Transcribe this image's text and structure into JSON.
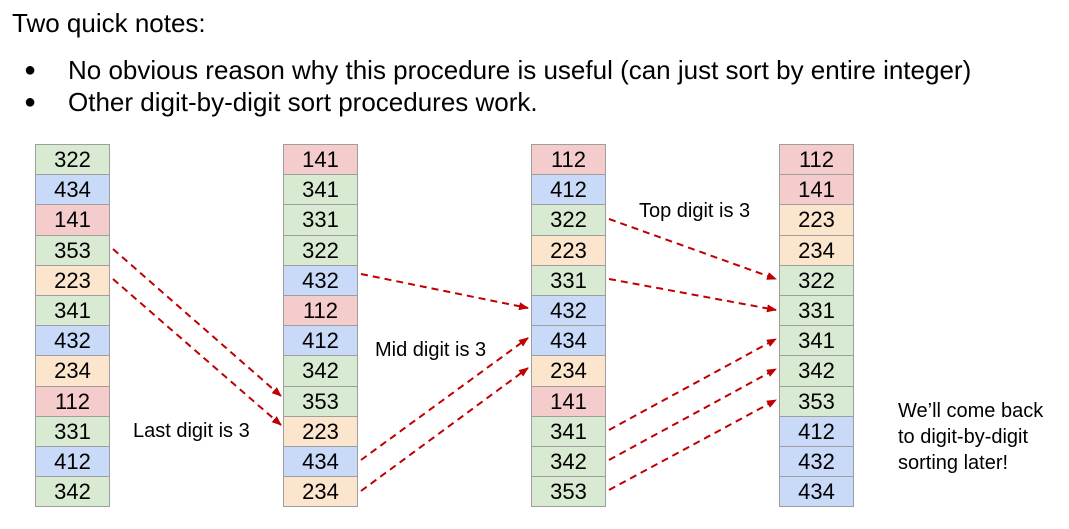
{
  "title": "Two quick notes:",
  "bullets": [
    "No obvious reason why this procedure is useful (can just sort by entire integer)",
    "Other digit-by-digit sort procedures work."
  ],
  "columns": [
    {
      "cells": [
        {
          "v": "322",
          "c": 1
        },
        {
          "v": "434",
          "c": 2
        },
        {
          "v": "141",
          "c": 3
        },
        {
          "v": "353",
          "c": 1
        },
        {
          "v": "223",
          "c": 4
        },
        {
          "v": "341",
          "c": 1
        },
        {
          "v": "432",
          "c": 2
        },
        {
          "v": "234",
          "c": 4
        },
        {
          "v": "112",
          "c": 3
        },
        {
          "v": "331",
          "c": 1
        },
        {
          "v": "412",
          "c": 2
        },
        {
          "v": "342",
          "c": 1
        }
      ]
    },
    {
      "cells": [
        {
          "v": "141",
          "c": 3
        },
        {
          "v": "341",
          "c": 1
        },
        {
          "v": "331",
          "c": 1
        },
        {
          "v": "322",
          "c": 1
        },
        {
          "v": "432",
          "c": 2
        },
        {
          "v": "112",
          "c": 3
        },
        {
          "v": "412",
          "c": 2
        },
        {
          "v": "342",
          "c": 1
        },
        {
          "v": "353",
          "c": 1
        },
        {
          "v": "223",
          "c": 4
        },
        {
          "v": "434",
          "c": 2
        },
        {
          "v": "234",
          "c": 4
        }
      ]
    },
    {
      "cells": [
        {
          "v": "112",
          "c": 3
        },
        {
          "v": "412",
          "c": 2
        },
        {
          "v": "322",
          "c": 1
        },
        {
          "v": "223",
          "c": 4
        },
        {
          "v": "331",
          "c": 1
        },
        {
          "v": "432",
          "c": 2
        },
        {
          "v": "434",
          "c": 2
        },
        {
          "v": "234",
          "c": 4
        },
        {
          "v": "141",
          "c": 3
        },
        {
          "v": "341",
          "c": 1
        },
        {
          "v": "342",
          "c": 1
        },
        {
          "v": "353",
          "c": 1
        }
      ]
    },
    {
      "cells": [
        {
          "v": "112",
          "c": 3
        },
        {
          "v": "141",
          "c": 3
        },
        {
          "v": "223",
          "c": 4
        },
        {
          "v": "234",
          "c": 4
        },
        {
          "v": "322",
          "c": 1
        },
        {
          "v": "331",
          "c": 1
        },
        {
          "v": "341",
          "c": 1
        },
        {
          "v": "342",
          "c": 1
        },
        {
          "v": "353",
          "c": 1
        },
        {
          "v": "412",
          "c": 2
        },
        {
          "v": "432",
          "c": 2
        },
        {
          "v": "434",
          "c": 2
        }
      ]
    }
  ],
  "labels": {
    "last_digit": "Last digit is 3",
    "mid_digit": "Mid digit is 3",
    "top_digit": "Top digit is 3"
  },
  "note_lines": [
    "We’ll come back",
    "to digit-by-digit",
    "sorting later!"
  ],
  "colors": {
    "arrow": "#c00000",
    "cell_green": "#d9ead3",
    "cell_blue": "#c9daf8",
    "cell_red": "#f4cccc",
    "cell_orange": "#fce5cd"
  }
}
